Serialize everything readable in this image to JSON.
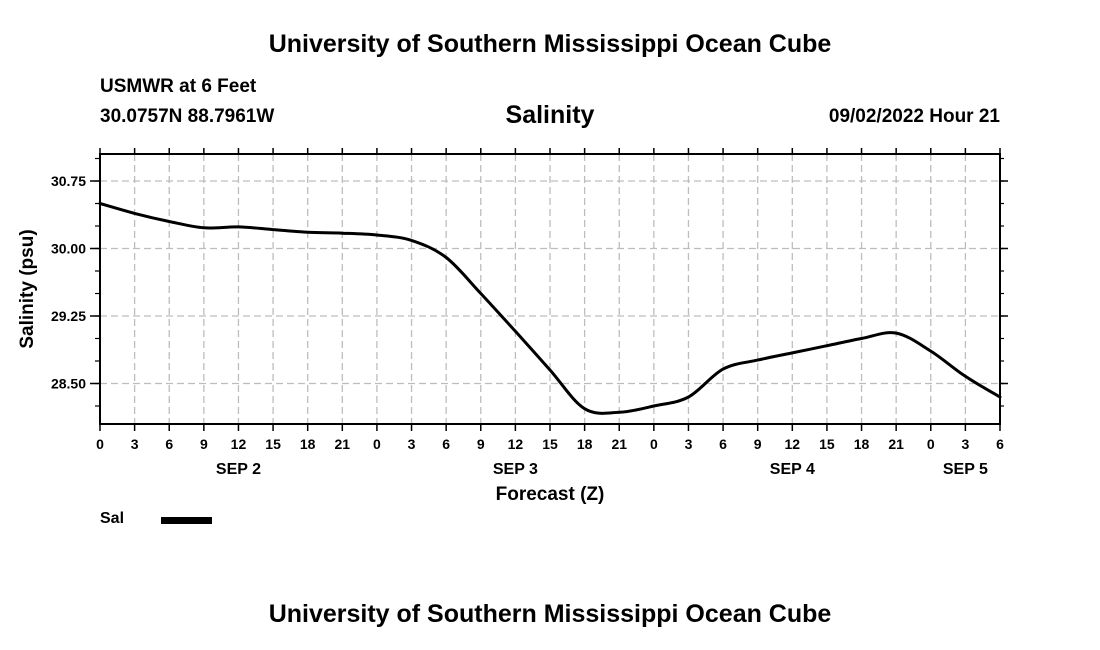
{
  "header": {
    "main_title": "University of Southern Mississippi Ocean Cube",
    "footer_title": "University of Southern Mississippi Ocean Cube",
    "station_name": "USMWR at 6 Feet",
    "station_coords": "30.0757N  88.7961W",
    "datetime": "09/02/2022 Hour 21"
  },
  "legend": {
    "label": "Sal"
  },
  "chart_data": {
    "type": "line",
    "title": "Salinity",
    "xlabel": "Forecast (Z)",
    "ylabel": "Salinity (psu)",
    "xlim": [
      0,
      78
    ],
    "ylim": [
      28.05,
      31.05
    ],
    "x_tick_step_hours": 3,
    "x_tick_labels": [
      "0",
      "3",
      "6",
      "9",
      "12",
      "15",
      "18",
      "21",
      "0",
      "3",
      "6",
      "9",
      "12",
      "15",
      "18",
      "21",
      "0",
      "3",
      "6",
      "9",
      "12",
      "15",
      "18",
      "21",
      "0",
      "3",
      "6"
    ],
    "day_labels": [
      {
        "label": "SEP 2",
        "hour": 12
      },
      {
        "label": "SEP 3",
        "hour": 36
      },
      {
        "label": "SEP 4",
        "hour": 60
      },
      {
        "label": "SEP 5",
        "hour": 75
      }
    ],
    "y_ticks": [
      {
        "value": 28.5,
        "label": "28.50"
      },
      {
        "value": 29.25,
        "label": "29.25"
      },
      {
        "value": 30.0,
        "label": "30.00"
      },
      {
        "value": 30.75,
        "label": "30.75"
      }
    ],
    "y_minor_step": 0.25,
    "grid": true,
    "series": [
      {
        "name": "Sal",
        "color": "#000000",
        "x": [
          0,
          3,
          6,
          9,
          12,
          15,
          18,
          21,
          24,
          27,
          30,
          33,
          36,
          39,
          42,
          45,
          48,
          51,
          54,
          57,
          60,
          63,
          66,
          69,
          72,
          75,
          78
        ],
        "y": [
          30.5,
          30.39,
          30.3,
          30.23,
          30.24,
          30.21,
          30.18,
          30.17,
          30.15,
          30.09,
          29.9,
          29.5,
          29.08,
          28.65,
          28.22,
          28.18,
          28.25,
          28.35,
          28.66,
          28.76,
          28.84,
          28.92,
          29.0,
          29.06,
          28.86,
          28.58,
          28.35
        ]
      }
    ]
  }
}
